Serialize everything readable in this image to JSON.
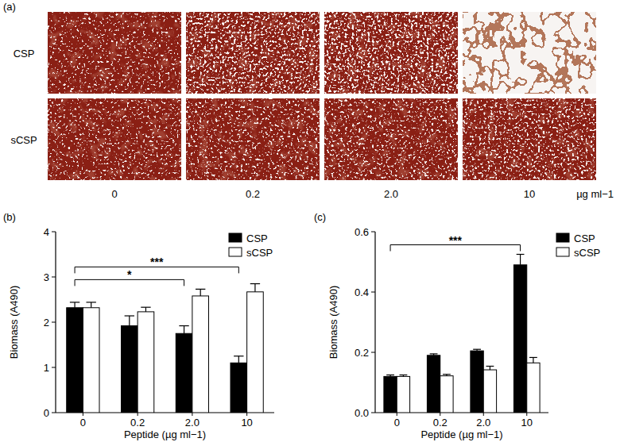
{
  "panel_a": {
    "label": "(a)",
    "rows": [
      "CSP",
      "sCSP"
    ],
    "columns": [
      "0",
      "0.2",
      "2.0",
      "10"
    ],
    "unit": "µg ml−1"
  },
  "chart_data": [
    {
      "type": "bar",
      "title": "(b)",
      "x_label": "Peptide (µg ml−1)",
      "y_label": "Biomass (A490)",
      "categories": [
        "0",
        "0.2",
        "2.0",
        "10"
      ],
      "series": [
        {
          "name": "CSP",
          "color": "#000000",
          "values": [
            2.32,
            1.92,
            1.75,
            1.1
          ],
          "errors": [
            0.12,
            0.22,
            0.17,
            0.15
          ]
        },
        {
          "name": "sCSP",
          "color": "#ffffff",
          "values": [
            2.32,
            2.23,
            2.58,
            2.67
          ],
          "errors": [
            0.12,
            0.1,
            0.15,
            0.18
          ]
        }
      ],
      "ylim": [
        0,
        4
      ],
      "yticks": [
        0,
        1,
        2,
        3,
        4
      ],
      "legend": "upper right",
      "annotations": [
        {
          "text": "*",
          "series": "CSP",
          "from": "0",
          "to": "2.0"
        },
        {
          "text": "***",
          "series": "CSP",
          "from": "0",
          "to": "10"
        }
      ]
    },
    {
      "type": "bar",
      "title": "(c)",
      "x_label": "Peptide (µg ml−1)",
      "y_label": "Biomass (A490)",
      "categories": [
        "0",
        "0.2",
        "2.0",
        "10"
      ],
      "series": [
        {
          "name": "CSP",
          "color": "#000000",
          "values": [
            0.12,
            0.19,
            0.205,
            0.49
          ],
          "errors": [
            0.005,
            0.005,
            0.005,
            0.035
          ]
        },
        {
          "name": "sCSP",
          "color": "#ffffff",
          "values": [
            0.12,
            0.122,
            0.142,
            0.165
          ],
          "errors": [
            0.005,
            0.005,
            0.012,
            0.018
          ]
        }
      ],
      "ylim": [
        0,
        0.6
      ],
      "yticks": [
        {
          "value": 0,
          "label": "0.0"
        },
        {
          "value": 0.2,
          "label": "0.2"
        },
        {
          "value": 0.4,
          "label": "0.4"
        },
        {
          "value": 0.6,
          "label": "0.6"
        }
      ],
      "legend": "upper right",
      "annotations": [
        {
          "text": "***",
          "series": "CSP",
          "from": "0",
          "to": "10"
        }
      ]
    }
  ]
}
